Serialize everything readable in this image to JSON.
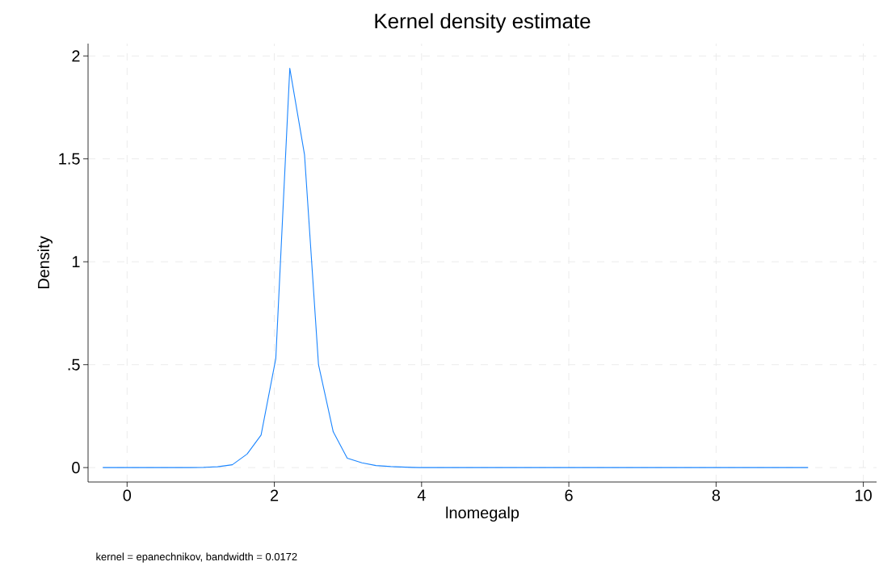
{
  "chart_data": {
    "type": "line",
    "title": "Kernel density estimate",
    "xlabel": "lnomegalp",
    "ylabel": "Density",
    "annotations": [
      "kernel = epanechnikov, bandwidth = 0.0172"
    ],
    "x": [
      -0.33,
      0.06,
      0.45,
      0.84,
      1.04,
      1.23,
      1.43,
      1.63,
      1.82,
      2.02,
      2.21,
      2.41,
      2.6,
      2.8,
      2.99,
      3.19,
      3.38,
      3.58,
      3.78,
      3.97,
      9.25
    ],
    "series": [
      {
        "color": "#1a85ff",
        "values": [
          0,
          0,
          0,
          0,
          0.001,
          0.004,
          0.014,
          0.066,
          0.158,
          0.53,
          1.94,
          1.52,
          0.5,
          0.174,
          0.046,
          0.023,
          0.01,
          0.005,
          0.002,
          0,
          0
        ]
      }
    ],
    "xlim": [
      -0.53,
      10.18
    ],
    "ylim": [
      -0.07,
      2.06
    ],
    "xticks": [
      0,
      2,
      4,
      6,
      8,
      10
    ],
    "yticks": [
      0,
      {
        "value": 0.5,
        "label": ".5"
      },
      1,
      1.5,
      2
    ],
    "grid": true,
    "marker": "none",
    "line_style": "solid"
  }
}
